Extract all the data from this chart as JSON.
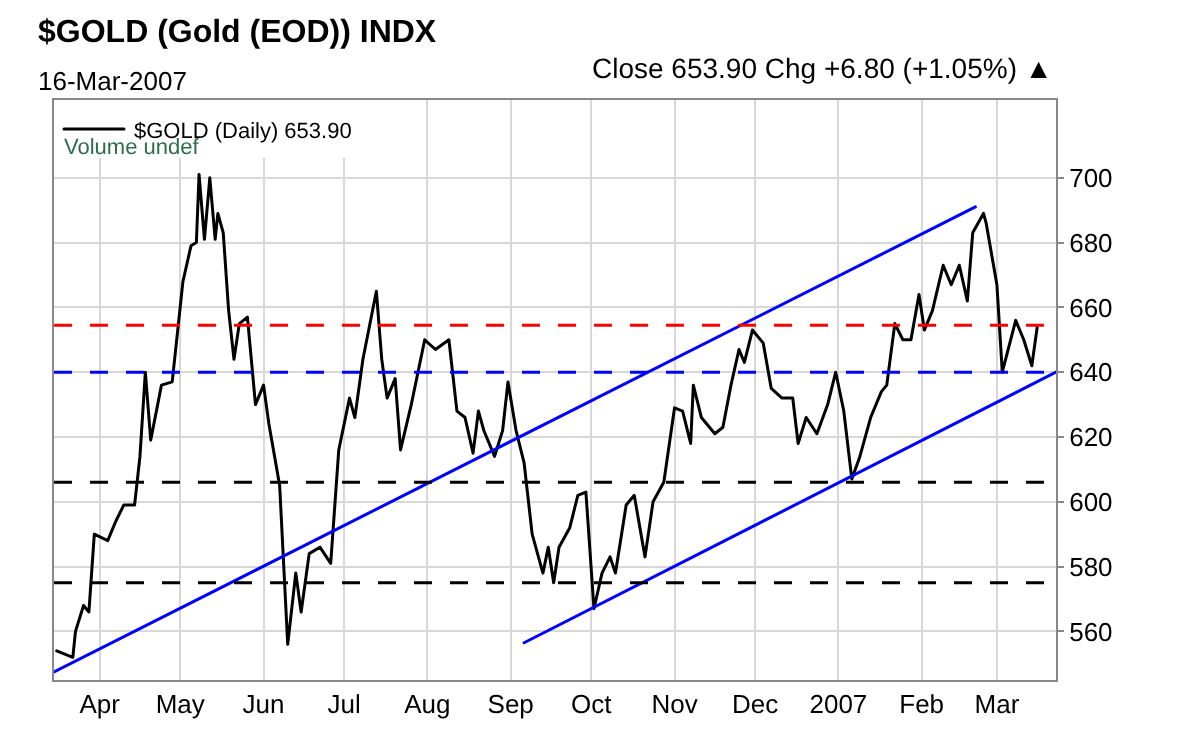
{
  "chart_data": {
    "type": "line",
    "title": "$GOLD (Gold (EOD)) INDX",
    "subtitle": "16-Mar-2007",
    "annotations": [
      "Close 653.90 Chg +6.80 (+1.05%) ▲",
      "Volume undef"
    ],
    "xlim": [
      "2006-03-15",
      "2007-03-23"
    ],
    "ylim": [
      545,
      724
    ],
    "xticks": [
      {
        "value": "2006-04-01",
        "label": "Apr"
      },
      {
        "value": "2006-05-01",
        "label": "May"
      },
      {
        "value": "2006-06-01",
        "label": "Jun"
      },
      {
        "value": "2006-07-01",
        "label": "Jul"
      },
      {
        "value": "2006-08-01",
        "label": "Aug"
      },
      {
        "value": "2006-09-01",
        "label": "Sep"
      },
      {
        "value": "2006-10-01",
        "label": "Oct"
      },
      {
        "value": "2006-11-01",
        "label": "Nov"
      },
      {
        "value": "2006-12-01",
        "label": "Dec"
      },
      {
        "value": "2007-01-01",
        "label": "2007"
      },
      {
        "value": "2007-02-01",
        "label": "Feb"
      },
      {
        "value": "2007-03-01",
        "label": "Mar"
      }
    ],
    "yticks": [
      560,
      580,
      600,
      620,
      640,
      660,
      680,
      700
    ],
    "grid": true,
    "legend": "top left",
    "line_style": "solid",
    "series": [
      {
        "name": "$GOLD (Daily) 653.90",
        "color": "#000000",
        "x": [
          "2006-03-16",
          "2006-03-22",
          "2006-03-23",
          "2006-03-26",
          "2006-03-28",
          "2006-03-30",
          "2006-04-04",
          "2006-04-07",
          "2006-04-10",
          "2006-04-14",
          "2006-04-16",
          "2006-04-18",
          "2006-04-20",
          "2006-04-24",
          "2006-04-28",
          "2006-05-02",
          "2006-05-05",
          "2006-05-07",
          "2006-05-08",
          "2006-05-10",
          "2006-05-12",
          "2006-05-14",
          "2006-05-15",
          "2006-05-17",
          "2006-05-19",
          "2006-05-21",
          "2006-05-23",
          "2006-05-26",
          "2006-05-29",
          "2006-06-01",
          "2006-06-03",
          "2006-06-07",
          "2006-06-10",
          "2006-06-13",
          "2006-06-15",
          "2006-06-18",
          "2006-06-22",
          "2006-06-26",
          "2006-06-29",
          "2006-07-03",
          "2006-07-05",
          "2006-07-08",
          "2006-07-13",
          "2006-07-15",
          "2006-07-17",
          "2006-07-20",
          "2006-07-22",
          "2006-07-26",
          "2006-07-31",
          "2006-08-04",
          "2006-08-09",
          "2006-08-12",
          "2006-08-15",
          "2006-08-18",
          "2006-08-20",
          "2006-08-22",
          "2006-08-26",
          "2006-08-29",
          "2006-08-31",
          "2006-09-03",
          "2006-09-06",
          "2006-09-09",
          "2006-09-13",
          "2006-09-15",
          "2006-09-17",
          "2006-09-19",
          "2006-09-23",
          "2006-09-26",
          "2006-09-29",
          "2006-10-02",
          "2006-10-05",
          "2006-10-08",
          "2006-10-10",
          "2006-10-14",
          "2006-10-17",
          "2006-10-21",
          "2006-10-24",
          "2006-10-28",
          "2006-11-01",
          "2006-11-04",
          "2006-11-07",
          "2006-11-08",
          "2006-11-11",
          "2006-11-16",
          "2006-11-19",
          "2006-11-22",
          "2006-11-25",
          "2006-11-27",
          "2006-11-30",
          "2006-12-04",
          "2006-12-07",
          "2006-12-11",
          "2006-12-15",
          "2006-12-17",
          "2006-12-20",
          "2006-12-24",
          "2006-12-28",
          "2006-12-31",
          "2007-01-03",
          "2007-01-06",
          "2007-01-09",
          "2007-01-13",
          "2007-01-17",
          "2007-01-19",
          "2007-01-22",
          "2007-01-25",
          "2007-01-28",
          "2007-01-31",
          "2007-02-02",
          "2007-02-05",
          "2007-02-09",
          "2007-02-12",
          "2007-02-15",
          "2007-02-18",
          "2007-02-20",
          "2007-02-24",
          "2007-02-25",
          "2007-03-01",
          "2007-03-03",
          "2007-03-08",
          "2007-03-11",
          "2007-03-14",
          "2007-03-16"
        ],
        "values": [
          554,
          552,
          560,
          568,
          566,
          590,
          588,
          594,
          599,
          599,
          614,
          640,
          619,
          636,
          637,
          668,
          679,
          680,
          701,
          681,
          700,
          681,
          689,
          683,
          659,
          644,
          655,
          657,
          630,
          636,
          624,
          605,
          556,
          578,
          566,
          584,
          586,
          581,
          616,
          632,
          626,
          644,
          665,
          644,
          632,
          638,
          616,
          630,
          650,
          647,
          650,
          628,
          626,
          615,
          628,
          622,
          614,
          622,
          637,
          622,
          612,
          590,
          578,
          586,
          575,
          586,
          592,
          602,
          603,
          567,
          578,
          583,
          578,
          599,
          602,
          583,
          600,
          606,
          629,
          628,
          618,
          636,
          626,
          621,
          623,
          636,
          647,
          643,
          653,
          649,
          635,
          632,
          632,
          618,
          626,
          621,
          630,
          640,
          628,
          607,
          614,
          626,
          634,
          636,
          655,
          650,
          650,
          664,
          653,
          659,
          673,
          667,
          673,
          662,
          683,
          689,
          686,
          667,
          640,
          656,
          650,
          642,
          653.9
        ]
      },
      {
        "color": "#0000ff",
        "x": [
          "2006-03-15",
          "2007-02-21"
        ],
        "values": [
          547.5,
          691
        ]
      },
      {
        "color": "#0000ff",
        "x": [
          "2006-09-06",
          "2007-03-23"
        ],
        "values": [
          556.5,
          640
        ]
      }
    ],
    "ref_lines": [
      {
        "axis": "y",
        "value": 654.5,
        "color": "#ff0000",
        "line_style": "dashed"
      },
      {
        "axis": "y",
        "value": 640,
        "color": "#0000ff",
        "line_style": "dashed"
      },
      {
        "axis": "y",
        "value": 606,
        "color": "#000000",
        "line_style": "dashed"
      },
      {
        "axis": "y",
        "value": 575,
        "color": "#000000",
        "line_style": "dashed"
      }
    ]
  }
}
